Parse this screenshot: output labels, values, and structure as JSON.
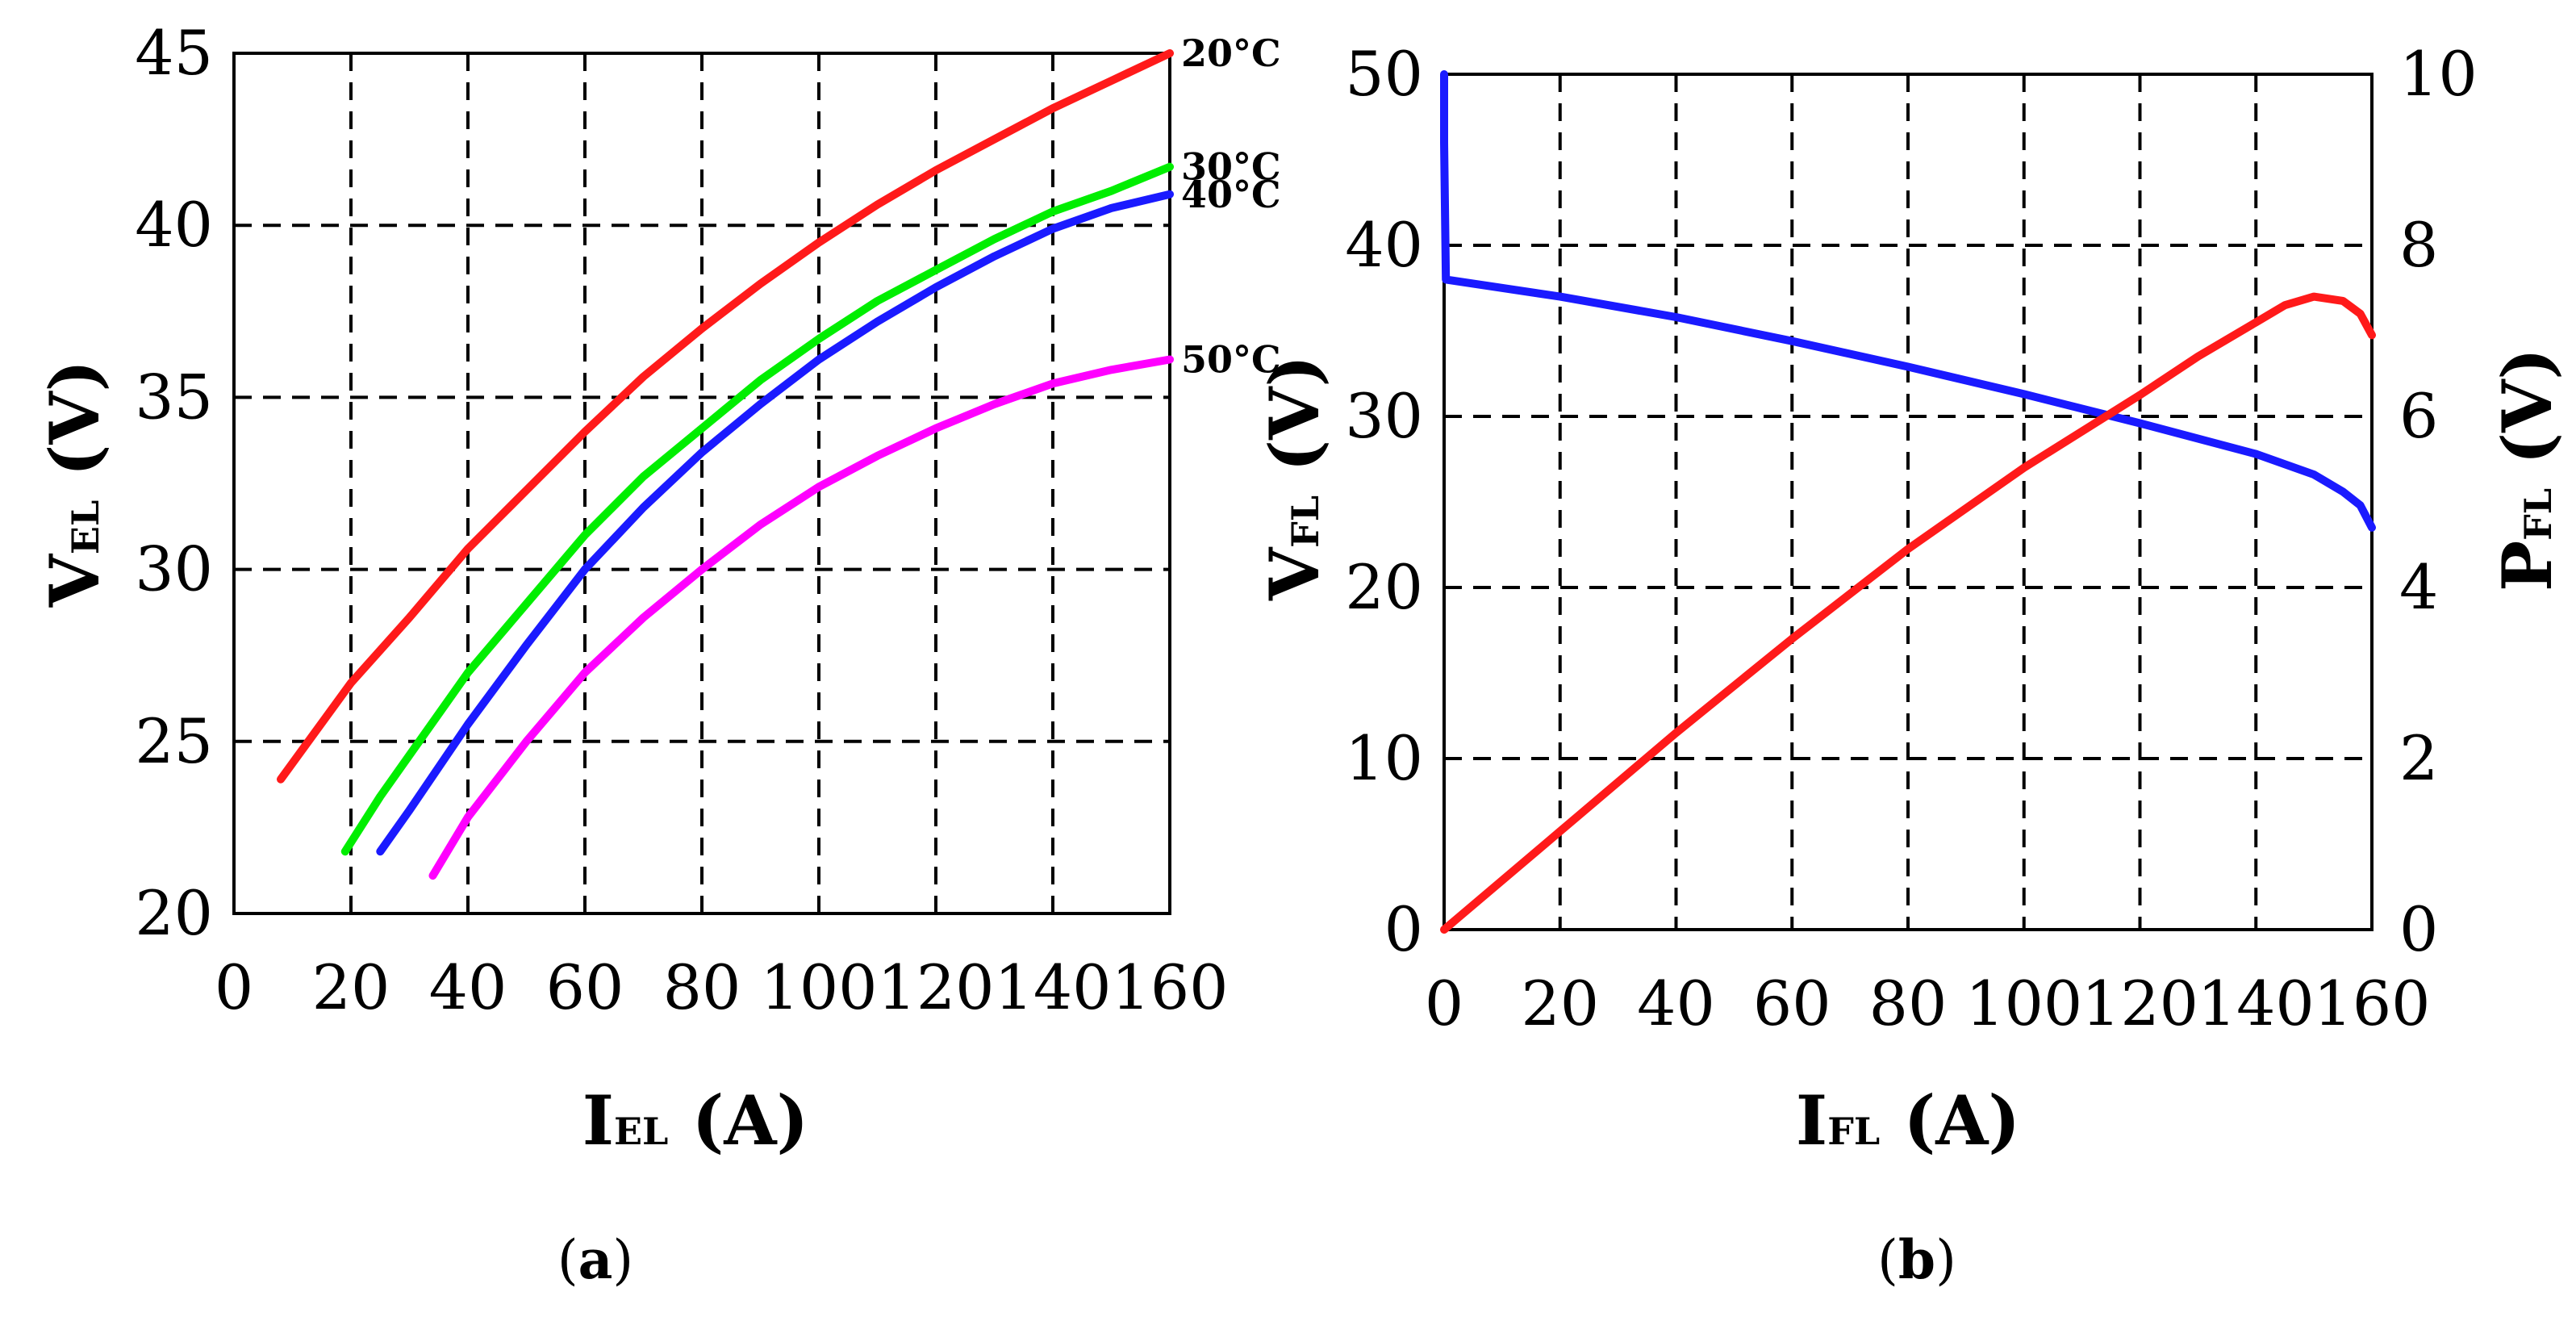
{
  "chart_data": [
    {
      "type": "line",
      "panel_label": {
        "open": "(",
        "letter": "a",
        "close": ")"
      },
      "xlabel": {
        "main": "I",
        "sub": "EL",
        "unit": " (A)"
      },
      "ylabel": {
        "main": "V",
        "sub": "EL",
        "unit": " (V)"
      },
      "xlim": [
        0,
        160
      ],
      "ylim": [
        20,
        45
      ],
      "xticks": [
        "0",
        "20",
        "40",
        "60",
        "80",
        "100",
        "120",
        "140",
        "160"
      ],
      "yticks": [
        "20",
        "25",
        "30",
        "35",
        "40",
        "45"
      ],
      "grid": true,
      "series": [
        {
          "name": "20°C",
          "color": "#ff1a1a",
          "x": [
            8,
            20,
            30,
            40,
            50,
            60,
            70,
            80,
            90,
            100,
            110,
            120,
            130,
            140,
            150,
            160
          ],
          "y": [
            23.9,
            26.7,
            28.6,
            30.6,
            32.3,
            34.0,
            35.6,
            37.0,
            38.3,
            39.5,
            40.6,
            41.6,
            42.5,
            43.4,
            44.2,
            45.0
          ]
        },
        {
          "name": "30°C",
          "color": "#00ee00",
          "x": [
            19,
            25,
            30,
            40,
            50,
            60,
            70,
            80,
            90,
            100,
            110,
            120,
            130,
            140,
            150,
            160
          ],
          "y": [
            21.8,
            23.4,
            24.6,
            27.0,
            29.0,
            31.0,
            32.7,
            34.1,
            35.5,
            36.7,
            37.8,
            38.7,
            39.6,
            40.4,
            41.0,
            41.7
          ]
        },
        {
          "name": "40°C",
          "color": "#1a1aff",
          "x": [
            25,
            30,
            40,
            50,
            60,
            70,
            80,
            90,
            100,
            110,
            120,
            130,
            140,
            150,
            160
          ],
          "y": [
            21.8,
            23.0,
            25.5,
            27.8,
            30.0,
            31.8,
            33.4,
            34.8,
            36.1,
            37.2,
            38.2,
            39.1,
            39.9,
            40.5,
            40.9
          ]
        },
        {
          "name": "50°C",
          "color": "#ff00ff",
          "x": [
            34,
            40,
            50,
            60,
            70,
            80,
            90,
            100,
            110,
            120,
            130,
            140,
            150,
            160
          ],
          "y": [
            21.1,
            22.8,
            25.0,
            27.0,
            28.6,
            30.0,
            31.3,
            32.4,
            33.3,
            34.1,
            34.8,
            35.4,
            35.8,
            36.1
          ]
        }
      ]
    },
    {
      "type": "line",
      "panel_label": {
        "open": "(",
        "letter": "b",
        "close": ")"
      },
      "xlabel": {
        "main": "I",
        "sub": "FL",
        "unit": " (A)"
      },
      "ylabel": {
        "main": "V",
        "sub": "FL",
        "unit": " (V)"
      },
      "y2label": {
        "main": "P",
        "sub": "FL",
        "unit": " (V)"
      },
      "xlim": [
        0,
        160
      ],
      "ylim": [
        0,
        50
      ],
      "y2lim": [
        0,
        10
      ],
      "xticks": [
        "0",
        "20",
        "40",
        "60",
        "80",
        "100",
        "120",
        "140",
        "160"
      ],
      "yticks": [
        "0",
        "10",
        "20",
        "30",
        "40",
        "50"
      ],
      "y2ticks": [
        "0",
        "2",
        "4",
        "6",
        "8",
        "10"
      ],
      "grid": true,
      "series": [
        {
          "name": "V_FL",
          "axis": "left",
          "color": "#1a1aff",
          "x": [
            0,
            0,
            0.3,
            20,
            40,
            60,
            80,
            100,
            120,
            140,
            150,
            155,
            158,
            160
          ],
          "y": [
            50,
            46,
            38.0,
            37.0,
            35.8,
            34.4,
            32.9,
            31.3,
            29.6,
            27.8,
            26.6,
            25.6,
            24.8,
            23.5
          ]
        },
        {
          "name": "P_FL",
          "axis": "right",
          "color": "#ff1a1a",
          "x": [
            0,
            20,
            40,
            60,
            80,
            100,
            120,
            130,
            140,
            145,
            150,
            155,
            158,
            160
          ],
          "y": [
            0,
            1.15,
            2.3,
            3.4,
            4.45,
            5.4,
            6.25,
            6.7,
            7.1,
            7.3,
            7.4,
            7.35,
            7.2,
            6.95
          ]
        }
      ]
    }
  ]
}
